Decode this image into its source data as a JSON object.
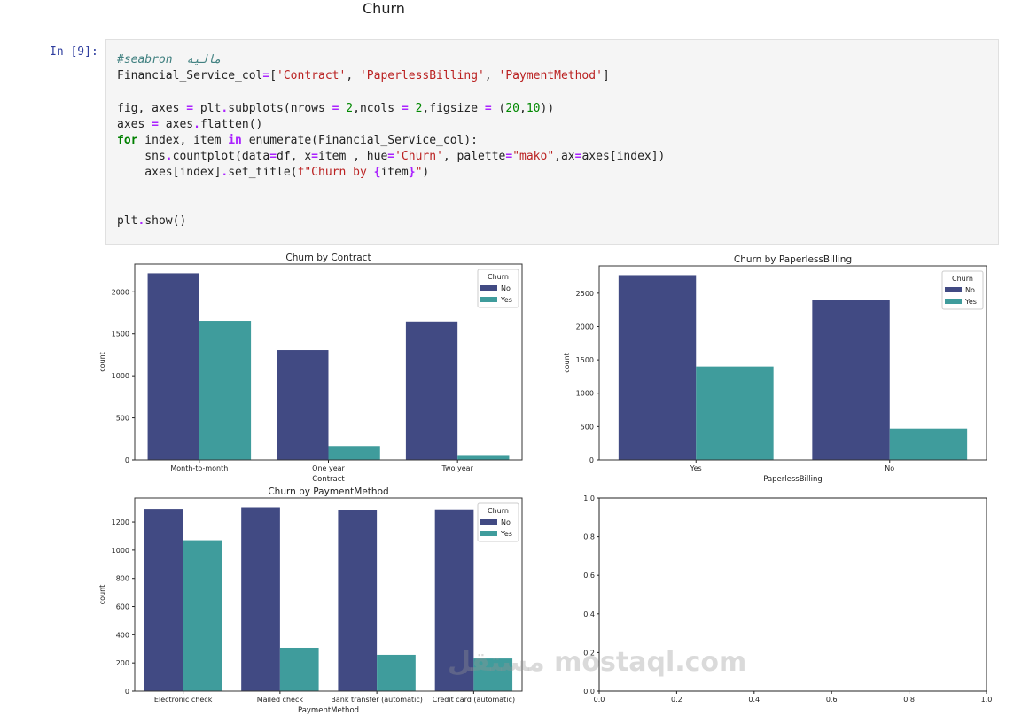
{
  "heading": "Churn",
  "cell": {
    "prompt": "In [9]:",
    "code": [
      [
        [
          "c",
          "#seabron  ماليه"
        ]
      ],
      [
        [
          "",
          "Financial_Service_col"
        ],
        [
          "o",
          "="
        ],
        [
          "",
          "["
        ],
        [
          "s",
          "'Contract'"
        ],
        [
          "",
          ", "
        ],
        [
          "s",
          "'PaperlessBilling'"
        ],
        [
          "",
          ", "
        ],
        [
          "s",
          "'PaymentMethod'"
        ],
        [
          "",
          "]"
        ]
      ],
      [],
      [
        [
          "",
          "fig, axes "
        ],
        [
          "o",
          "="
        ],
        [
          "",
          " plt"
        ],
        [
          "o",
          "."
        ],
        [
          "",
          "subplots(nrows "
        ],
        [
          "o",
          "="
        ],
        [
          "n",
          " 2"
        ],
        [
          "",
          ",ncols "
        ],
        [
          "o",
          "="
        ],
        [
          "n",
          " 2"
        ],
        [
          "",
          ",figsize "
        ],
        [
          "o",
          "="
        ],
        [
          "",
          " ("
        ],
        [
          "n",
          "20"
        ],
        [
          "",
          ","
        ],
        [
          "n",
          "10"
        ],
        [
          "",
          "))"
        ]
      ],
      [
        [
          "",
          "axes "
        ],
        [
          "o",
          "="
        ],
        [
          "",
          " axes"
        ],
        [
          "o",
          "."
        ],
        [
          "",
          "flatten()"
        ]
      ],
      [
        [
          "k",
          "for"
        ],
        [
          "",
          " index, item "
        ],
        [
          "o",
          "in"
        ],
        [
          "",
          " enumerate(Financial_Service_col):"
        ]
      ],
      [
        [
          "",
          "    sns"
        ],
        [
          "o",
          "."
        ],
        [
          "",
          "countplot(data"
        ],
        [
          "o",
          "="
        ],
        [
          "",
          "df, x"
        ],
        [
          "o",
          "="
        ],
        [
          "",
          "item , hue"
        ],
        [
          "o",
          "="
        ],
        [
          "s",
          "'Churn'"
        ],
        [
          "",
          ", palette"
        ],
        [
          "o",
          "="
        ],
        [
          "s",
          "\"mako\""
        ],
        [
          "",
          ",ax"
        ],
        [
          "o",
          "="
        ],
        [
          "",
          "axes[index])"
        ]
      ],
      [
        [
          "",
          "    axes[index]"
        ],
        [
          "o",
          "."
        ],
        [
          "",
          "set_title("
        ],
        [
          "s",
          "f\"Churn by "
        ],
        [
          "o",
          "{"
        ],
        [
          "",
          "item"
        ],
        [
          "o",
          "}"
        ],
        [
          "s",
          "\""
        ],
        [
          "",
          ")"
        ]
      ],
      [],
      [],
      [
        [
          "",
          "plt"
        ],
        [
          "o",
          "."
        ],
        [
          "",
          "show()"
        ]
      ]
    ]
  },
  "colors": {
    "No": "#414a83",
    "Yes": "#3f9c9c"
  },
  "watermark": "مستقل mostaql.com",
  "chart_data": [
    {
      "type": "bar",
      "title": "Churn by Contract",
      "xlabel": "Contract",
      "ylabel": "count",
      "categories": [
        "Month-to-month",
        "One year",
        "Two year"
      ],
      "series": [
        {
          "name": "No",
          "values": [
            2220,
            1307,
            1647
          ]
        },
        {
          "name": "Yes",
          "values": [
            1655,
            166,
            48
          ]
        }
      ],
      "yticks": [
        0,
        500,
        1000,
        1500,
        2000
      ],
      "ylim": [
        0,
        2330
      ],
      "legend": {
        "title": "Churn",
        "placement": "top-right"
      }
    },
    {
      "type": "bar",
      "title": "Churn by PaperlessBilling",
      "xlabel": "PaperlessBilling",
      "ylabel": "count",
      "categories": [
        "Yes",
        "No"
      ],
      "series": [
        {
          "name": "No",
          "values": [
            2771,
            2403
          ]
        },
        {
          "name": "Yes",
          "values": [
            1400,
            469
          ]
        }
      ],
      "yticks": [
        0,
        500,
        1000,
        1500,
        2000,
        2500
      ],
      "ylim": [
        0,
        2910
      ],
      "legend": {
        "title": "Churn",
        "placement": "top-right"
      }
    },
    {
      "type": "bar",
      "title": "Churn by PaymentMethod",
      "xlabel": "PaymentMethod",
      "ylabel": "count",
      "categories": [
        "Electronic check",
        "Mailed check",
        "Bank transfer (automatic)",
        "Credit card (automatic)"
      ],
      "series": [
        {
          "name": "No",
          "values": [
            1294,
            1304,
            1286,
            1290
          ]
        },
        {
          "name": "Yes",
          "values": [
            1071,
            308,
            258,
            232
          ]
        }
      ],
      "yticks": [
        0,
        200,
        400,
        600,
        800,
        1000,
        1200
      ],
      "ylim": [
        0,
        1370
      ],
      "legend": {
        "title": "Churn",
        "placement": "top-right"
      }
    },
    {
      "type": "empty",
      "title": "",
      "xticks": [
        "0.0",
        "0.2",
        "0.4",
        "0.6",
        "0.8",
        "1.0"
      ],
      "yticks": [
        "0.0",
        "0.2",
        "0.4",
        "0.6",
        "0.8",
        "1.0"
      ],
      "xlim": [
        0,
        1
      ],
      "ylim": [
        0,
        1
      ]
    }
  ]
}
